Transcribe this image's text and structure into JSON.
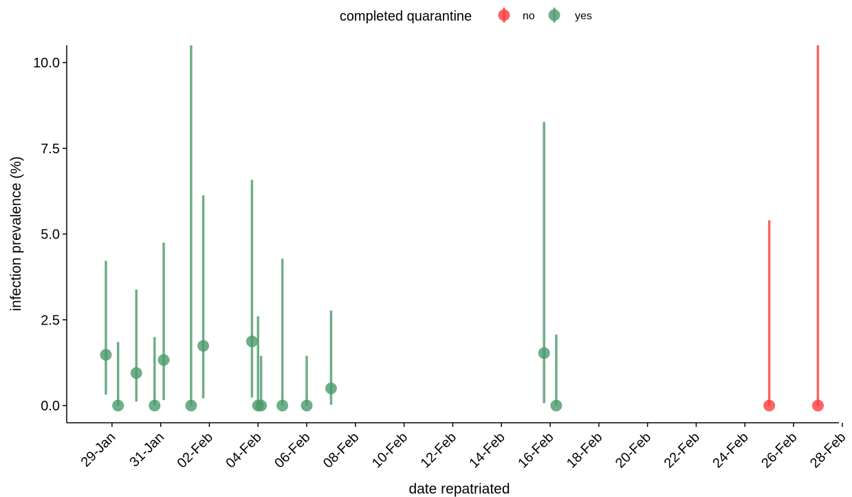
{
  "chart_data": {
    "type": "scatter",
    "xlabel": "date repatriated",
    "ylabel": "infection prevalence (%)",
    "legend": {
      "title": "completed quarantine",
      "placement": "top",
      "entries": [
        {
          "label": "no",
          "color": "#ff3b3b"
        },
        {
          "label": "yes",
          "color": "#4a9a6a"
        }
      ]
    },
    "x_ticks": [
      "29-Jan",
      "31-Jan",
      "02-Feb",
      "04-Feb",
      "06-Feb",
      "08-Feb",
      "10-Feb",
      "12-Feb",
      "14-Feb",
      "16-Feb",
      "18-Feb",
      "20-Feb",
      "22-Feb",
      "24-Feb",
      "26-Feb",
      "28-Feb"
    ],
    "y_ticks": [
      "0.0",
      "2.5",
      "5.0",
      "7.5",
      "10.0"
    ],
    "xlim": [
      "2020-01-28",
      "2020-02-28"
    ],
    "ylim": [
      0,
      10.5
    ],
    "series": [
      {
        "name": "no",
        "color": "#ff3b3b",
        "points": [
          {
            "x": "2020-02-25",
            "y": 0.0,
            "low": 0.0,
            "high": 5.4
          },
          {
            "x": "2020-02-27",
            "y": 0.0,
            "low": 0.0,
            "high": 10.5
          }
        ]
      },
      {
        "name": "yes",
        "color": "#4a9a6a",
        "points": [
          {
            "x": "2020-01-28T18:00",
            "y": 1.48,
            "low": 0.32,
            "high": 4.22
          },
          {
            "x": "2020-01-29T06:00",
            "y": 0.0,
            "low": 0.0,
            "high": 1.85
          },
          {
            "x": "2020-01-30",
            "y": 0.95,
            "low": 0.12,
            "high": 3.38
          },
          {
            "x": "2020-01-30T18:00",
            "y": 0.0,
            "low": 0.0,
            "high": 2.0
          },
          {
            "x": "2020-01-31T03:00",
            "y": 1.33,
            "low": 0.16,
            "high": 4.75
          },
          {
            "x": "2020-02-01T18:00",
            "y": 1.74,
            "low": 0.21,
            "high": 6.13
          },
          {
            "x": "2020-02-01T06:00",
            "y": 0.0,
            "low": 0.0,
            "high": 10.5
          },
          {
            "x": "2020-02-03T18:00",
            "y": 1.87,
            "low": 0.23,
            "high": 6.58
          },
          {
            "x": "2020-02-04",
            "y": 0.0,
            "low": 0.0,
            "high": 2.6
          },
          {
            "x": "2020-02-04T03:00",
            "y": 0.0,
            "low": 0.0,
            "high": 1.45
          },
          {
            "x": "2020-02-05",
            "y": 0.0,
            "low": 0.0,
            "high": 4.28
          },
          {
            "x": "2020-02-06",
            "y": 0.0,
            "low": 0.0,
            "high": 1.45
          },
          {
            "x": "2020-02-07",
            "y": 0.5,
            "low": 0.02,
            "high": 2.77
          },
          {
            "x": "2020-02-15T18:00",
            "y": 1.53,
            "low": 0.07,
            "high": 8.27
          },
          {
            "x": "2020-02-16T06:00",
            "y": 0.0,
            "low": 0.0,
            "high": 2.07
          }
        ]
      }
    ]
  }
}
